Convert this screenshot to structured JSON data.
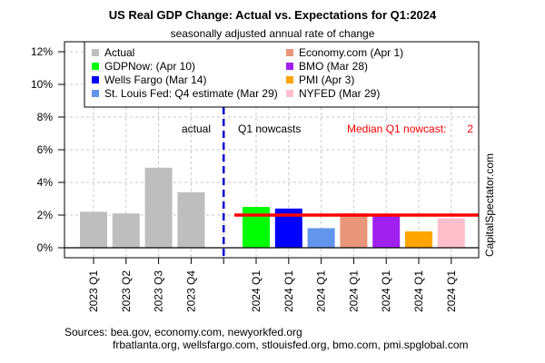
{
  "chart_data": {
    "type": "bar",
    "title": "US Real GDP Change: Actual vs. Expectations for Q1:2024",
    "subtitle": "seasonally adjusted annual rate of change",
    "xlabel": "",
    "ylabel": "",
    "ylim": [
      0,
      12
    ],
    "yticks": [
      "0%",
      "2%",
      "4%",
      "6%",
      "8%",
      "10%",
      "12%"
    ],
    "ytick_values": [
      0,
      2,
      4,
      6,
      8,
      10,
      12
    ],
    "grid": true,
    "legend_position": "top",
    "categories": [
      "2023 Q1",
      "2023 Q2",
      "2023 Q3",
      "2023 Q4",
      "",
      "2024 Q1",
      "2024 Q1",
      "2024 Q1",
      "2024 Q1",
      "2024 Q1",
      "2024 Q1",
      "2024 Q1"
    ],
    "bars": [
      {
        "label": "2023 Q1",
        "series": "Actual",
        "value": 2.2,
        "color": "#bebebe"
      },
      {
        "label": "2023 Q2",
        "series": "Actual",
        "value": 2.1,
        "color": "#bebebe"
      },
      {
        "label": "2023 Q3",
        "series": "Actual",
        "value": 4.9,
        "color": "#bebebe"
      },
      {
        "label": "2023 Q4",
        "series": "Actual",
        "value": 3.4,
        "color": "#bebebe"
      },
      {
        "label": "",
        "series": "",
        "value": null,
        "color": ""
      },
      {
        "label": "2024 Q1",
        "series": "GDPNow: (Apr 10)",
        "value": 2.5,
        "color": "#00ff00"
      },
      {
        "label": "2024 Q1",
        "series": "Wells Fargo (Mar 14)",
        "value": 2.4,
        "color": "#0000ff"
      },
      {
        "label": "2024 Q1",
        "series": "St. Louis Fed: Q4 estimate (Mar 29)",
        "value": 1.2,
        "color": "#6495ed"
      },
      {
        "label": "2024 Q1",
        "series": "Economy.com (Apr 1)",
        "value": 2.1,
        "color": "#e9967a"
      },
      {
        "label": "2024 Q1",
        "series": "BMO (Mar 28)",
        "value": 2.0,
        "color": "#a020f0"
      },
      {
        "label": "2024 Q1",
        "series": "PMI (Apr 3)",
        "value": 1.0,
        "color": "#ffa500"
      },
      {
        "label": "2024 Q1",
        "series": "NYFED (Mar 29)",
        "value": 1.8,
        "color": "#ffc0cb"
      }
    ],
    "legend": [
      {
        "label": "Actual",
        "color": "#bebebe"
      },
      {
        "label": "GDPNow: (Apr 10)",
        "color": "#00ff00"
      },
      {
        "label": "Wells Fargo (Mar 14)",
        "color": "#0000ff"
      },
      {
        "label": "St. Louis Fed: Q4 estimate (Mar 29)",
        "color": "#6495ed"
      },
      {
        "label": "Economy.com (Apr 1)",
        "color": "#e9967a"
      },
      {
        "label": "BMO (Mar 28)",
        "color": "#a020f0"
      },
      {
        "label": "PMI (Apr 3)",
        "color": "#ffa500"
      },
      {
        "label": "NYFED (Mar 29)",
        "color": "#ffc0cb"
      }
    ],
    "median_line": {
      "value": 2.0,
      "color": "#ff0000"
    },
    "divider_color": "#0000cd",
    "annotations": {
      "actual": "actual",
      "nowcasts": "Q1 nowcasts",
      "median_label": "Median Q1 nowcast:",
      "median_value": "2"
    },
    "watermark": "CapitalSpectator.com",
    "sources_line1": "Sources: bea.gov, economy.com, newyorkfed.org",
    "sources_line2": "frbatlanta.org, wellsfargo.com, stlouisfed.org, bmo.com, pmi.spglobal.com"
  }
}
